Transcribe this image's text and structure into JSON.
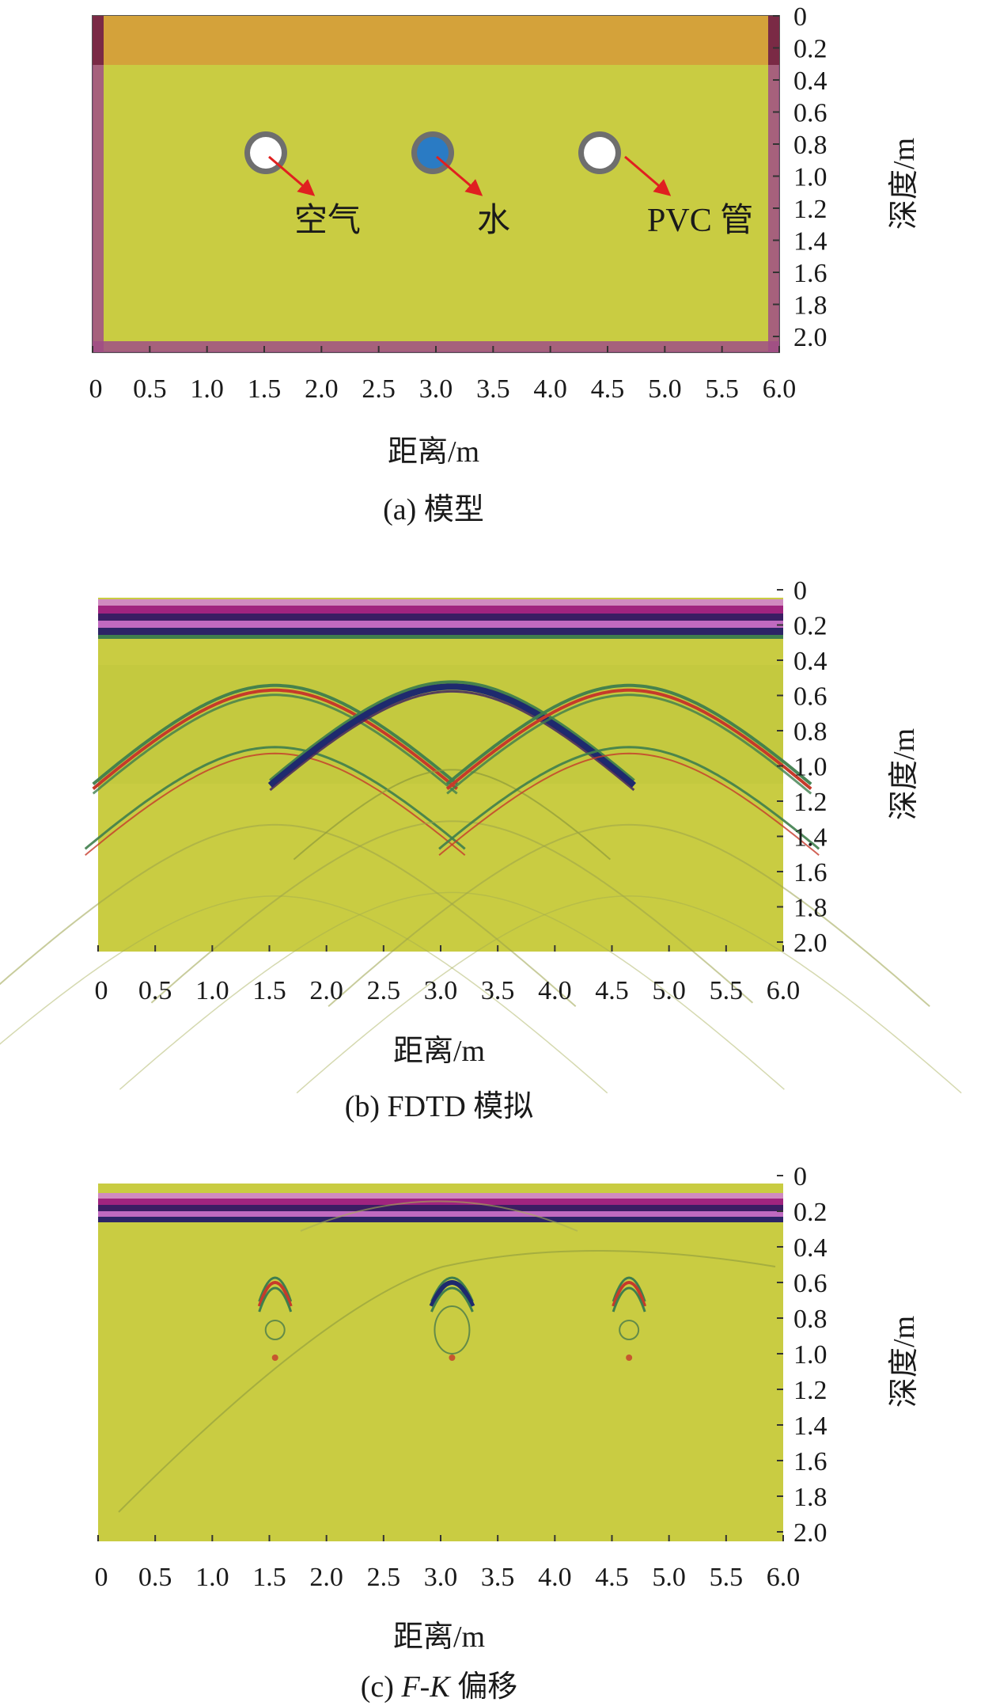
{
  "figure": {
    "panels": [
      {
        "id": "a",
        "caption": "(a) 模型",
        "xlabel": "距离/m",
        "ylabel": "深度/m",
        "x_ticks": [
          "0",
          "0.5",
          "1.0",
          "1.5",
          "2.0",
          "2.5",
          "3.0",
          "3.5",
          "4.0",
          "4.5",
          "5.0",
          "5.5",
          "6.0"
        ],
        "y_ticks": [
          "0",
          "0.2",
          "0.4",
          "0.6",
          "0.8",
          "1.0",
          "1.2",
          "1.4",
          "1.6",
          "1.8",
          "2.0"
        ],
        "annotations": [
          {
            "label": "空气",
            "pipe_x_m": 1.5,
            "pipe_depth_m": 0.9,
            "fill": "air"
          },
          {
            "label": "水",
            "pipe_x_m": 3.0,
            "pipe_depth_m": 0.9,
            "fill": "water"
          },
          {
            "label": "PVC 管",
            "pipe_x_m": 4.5,
            "pipe_depth_m": 0.9,
            "fill": "air"
          }
        ],
        "layers": [
          {
            "material": "top layer",
            "depth_from_m": 0.0,
            "depth_to_m": 0.26,
            "color": "#d4a23a"
          },
          {
            "material": "soil",
            "depth_from_m": 0.26,
            "depth_to_m": 2.05,
            "color": "#c9cc42"
          },
          {
            "material": "boundary",
            "color": "#a04e86"
          }
        ]
      },
      {
        "id": "b",
        "caption": "(b) FDTD 模拟",
        "xlabel": "距离/m",
        "ylabel": "深度/m",
        "x_ticks": [
          "0",
          "0.5",
          "1.0",
          "1.5",
          "2.0",
          "2.5",
          "3.0",
          "3.5",
          "4.0",
          "4.5",
          "5.0",
          "5.5",
          "6.0"
        ],
        "y_ticks": [
          "0",
          "0.2",
          "0.4",
          "0.6",
          "0.8",
          "1.0",
          "1.2",
          "1.4",
          "1.6",
          "1.8",
          "2.0"
        ],
        "hyperbolas": [
          {
            "apex_x_m": 1.55,
            "apex_depth_m": 0.57
          },
          {
            "apex_x_m": 3.1,
            "apex_depth_m": 0.55
          },
          {
            "apex_x_m": 4.65,
            "apex_depth_m": 0.57
          }
        ]
      },
      {
        "id": "c",
        "caption_prefix": "(c) ",
        "caption_italic": "F-K",
        "caption_suffix": " 偏移",
        "xlabel": "距离/m",
        "ylabel": "深度/m",
        "x_ticks": [
          "0",
          "0.5",
          "1.0",
          "1.5",
          "2.0",
          "2.5",
          "3.0",
          "3.5",
          "4.0",
          "4.5",
          "5.0",
          "5.5",
          "6.0"
        ],
        "y_ticks": [
          "0",
          "0.2",
          "0.4",
          "0.6",
          "0.8",
          "1.0",
          "1.2",
          "1.4",
          "1.6",
          "1.8",
          "2.0"
        ],
        "focused_targets": [
          {
            "x_m": 1.55,
            "depth_m": 0.6
          },
          {
            "x_m": 3.1,
            "depth_m": 0.6
          },
          {
            "x_m": 4.65,
            "depth_m": 0.6
          }
        ]
      }
    ],
    "colors": {
      "background": "#c9cc42",
      "direct_wave_dark": "#3b1d63",
      "direct_wave_magenta": "#a0247f",
      "reflection_red": "#c63a2a",
      "reflection_green": "#3f7e4d",
      "reflection_navy": "#1e2a6e",
      "water": "#2a7bc4",
      "pipe_rim": "#6e6e6e"
    }
  }
}
